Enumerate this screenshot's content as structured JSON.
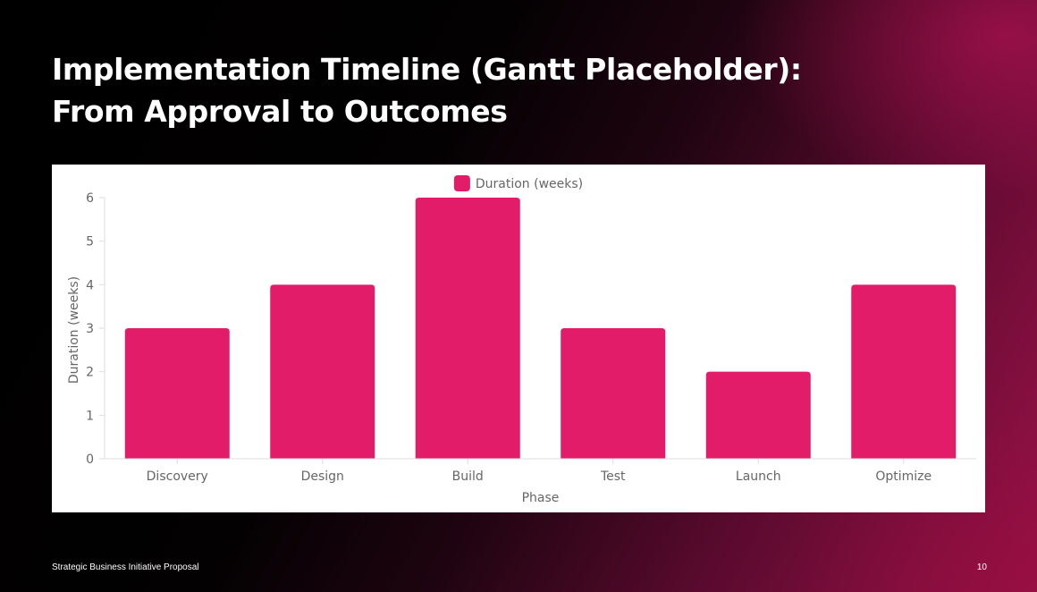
{
  "slide": {
    "title": "Implementation Timeline (Gantt Placeholder): From Approval to Outcomes",
    "footer_left": "Strategic Business Initiative Proposal",
    "page_number": "10"
  },
  "chart_data": {
    "type": "bar",
    "categories": [
      "Discovery",
      "Design",
      "Build",
      "Test",
      "Launch",
      "Optimize"
    ],
    "series": [
      {
        "name": "Duration (weeks)",
        "values": [
          3,
          4,
          6,
          3,
          2,
          4
        ]
      }
    ],
    "xlabel": "Phase",
    "ylabel": "Duration (weeks)",
    "ylim": [
      0,
      6
    ],
    "yticks": [
      0,
      1,
      2,
      3,
      4,
      5,
      6
    ],
    "legend_position": "top-center",
    "grid": false,
    "colors": {
      "bar": "#E31C6A",
      "axis": "#dddddd",
      "text": "#666666"
    }
  }
}
